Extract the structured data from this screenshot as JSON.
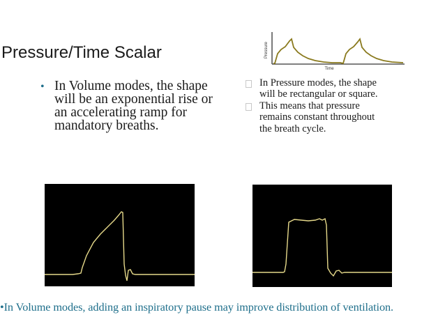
{
  "slide": {
    "title": "Pressure/Time Scalar"
  },
  "left_bullet": {
    "marker": "•",
    "text": "In Volume modes, the shape will be an exponential rise or an accelerating ramp for mandatory breaths."
  },
  "right_list": [
    {
      "text": "In Pressure modes, the shape will be rectangular or square."
    },
    {
      "text": "This means that pressure remains constant throughout the breath cycle."
    }
  ],
  "mini_chart": {
    "ylabel": "Pressure",
    "xlabel": "Time",
    "colors": {
      "axis": "#333333",
      "trace": "#8a7a1e"
    }
  },
  "scope_left": {
    "waveform": "accelerating-ramp",
    "colors": {
      "background": "#000000",
      "trace": "#e6d98a"
    }
  },
  "scope_right": {
    "waveform": "rectangular",
    "colors": {
      "background": "#000000",
      "trace": "#e6d98a"
    }
  },
  "footnote": {
    "text": "•In Volume modes, adding an inspiratory pause may improve distribution of ventilation."
  }
}
